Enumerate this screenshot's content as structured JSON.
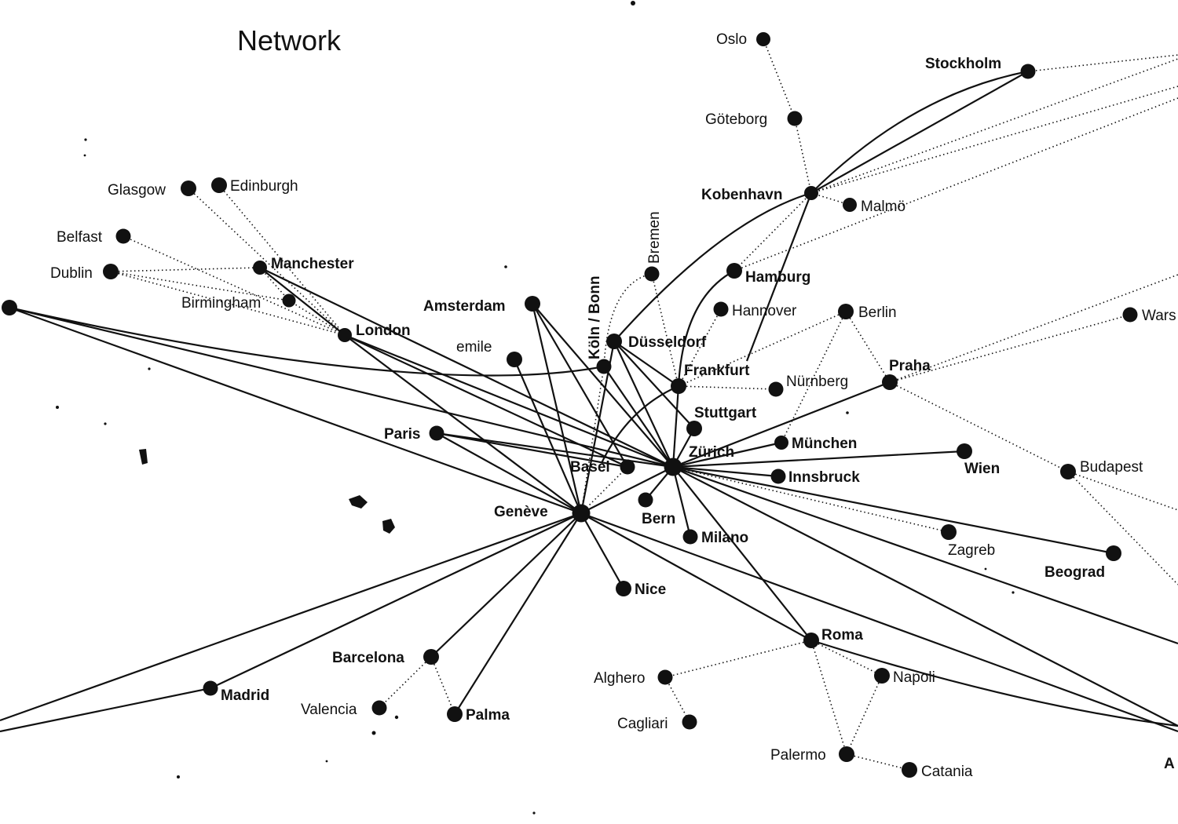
{
  "title": "Network",
  "cities": {
    "oslo": "Oslo",
    "stockholm": "Stockholm",
    "goteborg": "Göteborg",
    "kobenhavn": "Kobenhavn",
    "malmo": "Malmö",
    "glasgow": "Glasgow",
    "edinburgh": "Edinburgh",
    "belfast": "Belfast",
    "dublin": "Dublin",
    "manchester": "Manchester",
    "birmingham": "Birmingham",
    "london": "London",
    "amsterdam": "Amsterdam",
    "bremen": "Bremen",
    "hamburg": "Hamburg",
    "hannover": "Hannover",
    "berlin": "Berlin",
    "warszawa": "Wars",
    "koln": "Köln / Bonn",
    "emile": "emile",
    "dusseldorf": "Düsseldorf",
    "frankfurt": "Frankfurt",
    "nurnberg": "Nürnberg",
    "praha": "Praha",
    "stuttgart": "Stuttgart",
    "paris": "Paris",
    "munchen": "München",
    "zurich": "Zürich",
    "basel": "Basel",
    "wien": "Wien",
    "innsbruck": "Innsbruck",
    "budapest": "Budapest",
    "geneve": "Genève",
    "bern": "Bern",
    "milano": "Milano",
    "zagreb": "Zagreb",
    "beograd": "Beograd",
    "nice": "Nice",
    "roma": "Roma",
    "barcelona": "Barcelona",
    "alghero": "Alghero",
    "napoli": "Napoli",
    "madrid": "Madrid",
    "valencia": "Valencia",
    "palma": "Palma",
    "cagliari": "Cagliari",
    "palermo": "Palermo",
    "catania": "Catania",
    "athens": "A"
  }
}
